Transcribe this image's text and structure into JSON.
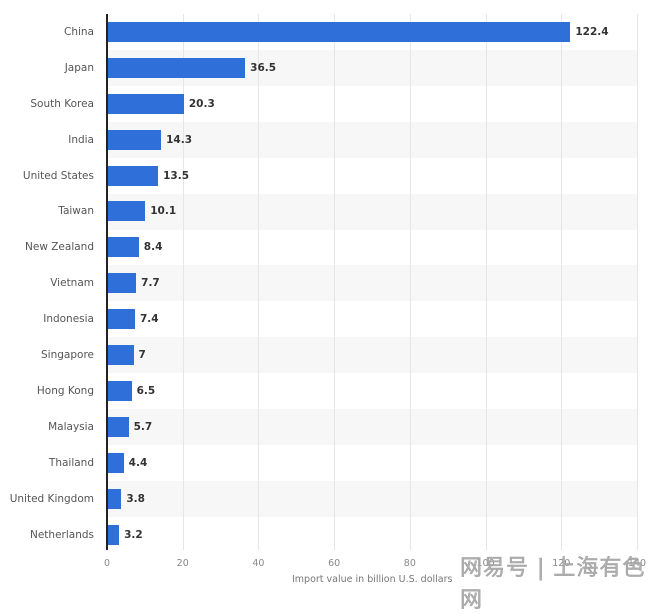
{
  "chart_data": {
    "type": "bar",
    "orientation": "horizontal",
    "title": "",
    "xlabel": "Import value in billion U.S. dollars",
    "ylabel": "",
    "xlim": [
      0,
      140
    ],
    "x_ticks": [
      0,
      20,
      40,
      60,
      80,
      100,
      120,
      140
    ],
    "grid": true,
    "legend": null,
    "bar_color": "#2f6fd9",
    "categories": [
      "China",
      "Japan",
      "South Korea",
      "India",
      "United States",
      "Taiwan",
      "New Zealand",
      "Vietnam",
      "Indonesia",
      "Singapore",
      "Hong Kong",
      "Malaysia",
      "Thailand",
      "United Kingdom",
      "Netherlands"
    ],
    "values": [
      122.4,
      36.5,
      20.3,
      14.3,
      13.5,
      10.1,
      8.4,
      7.7,
      7.4,
      7,
      6.5,
      5.7,
      4.4,
      3.8,
      3.2
    ],
    "value_labels": [
      "122.4",
      "36.5",
      "20.3",
      "14.3",
      "13.5",
      "10.1",
      "8.4",
      "7.7",
      "7.4",
      "7",
      "6.5",
      "5.7",
      "4.4",
      "3.8",
      "3.2"
    ]
  },
  "axis": {
    "title": "Import value in billion U.S. dollars",
    "ticks": [
      "0",
      "20",
      "40",
      "60",
      "80",
      "100",
      "120",
      "140"
    ]
  },
  "watermark": "网易号 | 上海有色网"
}
